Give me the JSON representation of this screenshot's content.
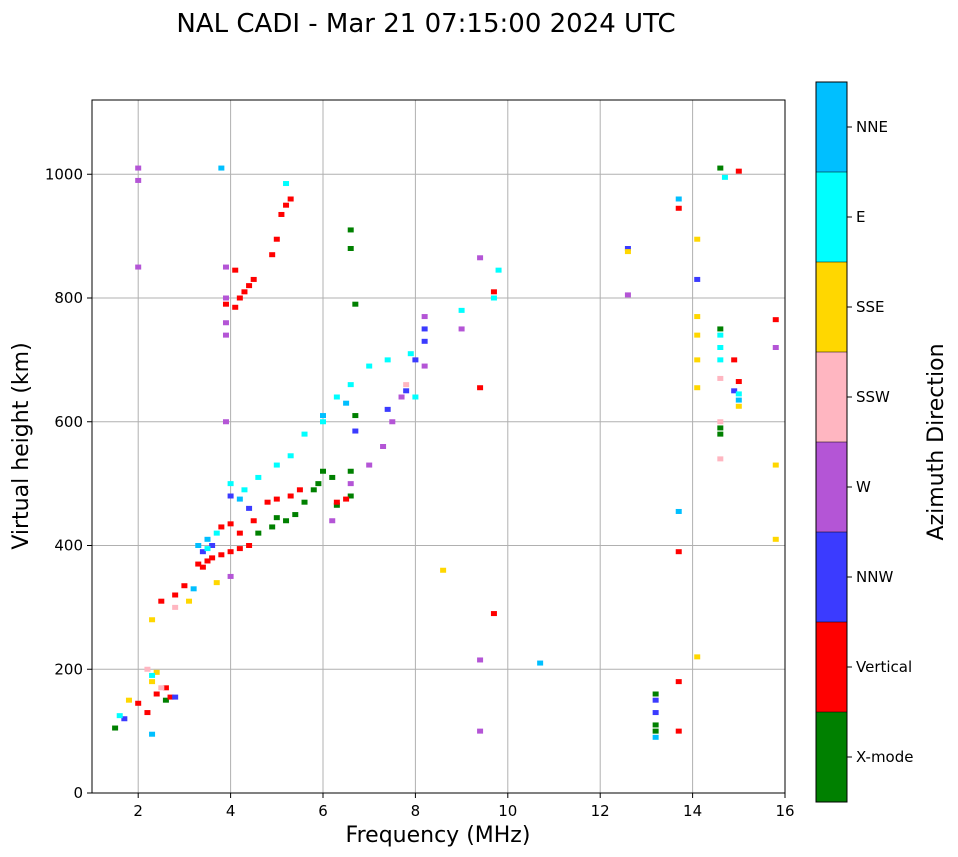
{
  "chart_data": {
    "type": "scatter",
    "title": "NAL CADI - Mar 21 07:15:00 2024 UTC",
    "xlabel": "Frequency (MHz)",
    "ylabel": "Virtual height (km)",
    "xlim": [
      1,
      16
    ],
    "ylim": [
      0,
      1120
    ],
    "xticks": [
      2,
      4,
      6,
      8,
      10,
      12,
      14,
      16
    ],
    "yticks": [
      0,
      200,
      400,
      600,
      800,
      1000
    ],
    "grid": true,
    "colorbar": {
      "label": "Azimuth Direction",
      "categories": [
        {
          "name": "X-mode",
          "color": "#008000"
        },
        {
          "name": "Vertical",
          "color": "#ff0000"
        },
        {
          "name": "NNW",
          "color": "#3b3bff"
        },
        {
          "name": "W",
          "color": "#b455d6"
        },
        {
          "name": "SSW",
          "color": "#ffb6c1"
        },
        {
          "name": "SSE",
          "color": "#ffd700"
        },
        {
          "name": "E",
          "color": "#00ffff"
        },
        {
          "name": "NNE",
          "color": "#00bfff"
        }
      ]
    },
    "series": [
      {
        "name": "X-mode",
        "points": [
          [
            1.5,
            105
          ],
          [
            2.6,
            150
          ],
          [
            4.6,
            420
          ],
          [
            4.9,
            430
          ],
          [
            5.0,
            445
          ],
          [
            5.2,
            440
          ],
          [
            5.4,
            450
          ],
          [
            5.6,
            470
          ],
          [
            5.8,
            490
          ],
          [
            5.9,
            500
          ],
          [
            6.0,
            520
          ],
          [
            6.2,
            510
          ],
          [
            6.3,
            465
          ],
          [
            6.6,
            480
          ],
          [
            6.6,
            520
          ],
          [
            6.7,
            610
          ],
          [
            6.7,
            790
          ],
          [
            6.6,
            880
          ],
          [
            6.6,
            910
          ],
          [
            13.2,
            100
          ],
          [
            13.2,
            110
          ],
          [
            14.6,
            580
          ],
          [
            14.6,
            590
          ],
          [
            14.6,
            750
          ],
          [
            14.6,
            1010
          ],
          [
            13.2,
            160
          ]
        ]
      },
      {
        "name": "Vertical",
        "points": [
          [
            2.0,
            145
          ],
          [
            2.2,
            130
          ],
          [
            2.4,
            160
          ],
          [
            2.6,
            170
          ],
          [
            2.7,
            155
          ],
          [
            2.5,
            310
          ],
          [
            2.8,
            320
          ],
          [
            3.0,
            335
          ],
          [
            3.3,
            370
          ],
          [
            3.4,
            365
          ],
          [
            3.5,
            375
          ],
          [
            3.6,
            380
          ],
          [
            3.8,
            385
          ],
          [
            4.0,
            390
          ],
          [
            4.2,
            395
          ],
          [
            4.4,
            400
          ],
          [
            3.8,
            430
          ],
          [
            4.0,
            435
          ],
          [
            4.2,
            420
          ],
          [
            4.5,
            440
          ],
          [
            4.8,
            470
          ],
          [
            5.0,
            475
          ],
          [
            5.3,
            480
          ],
          [
            5.5,
            490
          ],
          [
            6.3,
            470
          ],
          [
            6.5,
            475
          ],
          [
            3.9,
            790
          ],
          [
            4.1,
            785
          ],
          [
            4.2,
            800
          ],
          [
            4.3,
            810
          ],
          [
            4.4,
            820
          ],
          [
            4.5,
            830
          ],
          [
            4.1,
            845
          ],
          [
            4.9,
            870
          ],
          [
            5.0,
            895
          ],
          [
            5.1,
            935
          ],
          [
            5.2,
            950
          ],
          [
            5.3,
            960
          ],
          [
            9.4,
            655
          ],
          [
            9.7,
            290
          ],
          [
            9.7,
            810
          ],
          [
            13.7,
            100
          ],
          [
            13.7,
            180
          ],
          [
            13.7,
            390
          ],
          [
            13.7,
            945
          ],
          [
            14.9,
            700
          ],
          [
            15.0,
            1005
          ],
          [
            15.0,
            665
          ],
          [
            15.8,
            765
          ]
        ]
      },
      {
        "name": "NNW",
        "points": [
          [
            1.7,
            120
          ],
          [
            2.8,
            155
          ],
          [
            3.4,
            390
          ],
          [
            3.6,
            400
          ],
          [
            4.0,
            480
          ],
          [
            4.4,
            460
          ],
          [
            6.7,
            585
          ],
          [
            7.4,
            620
          ],
          [
            7.8,
            650
          ],
          [
            8.0,
            700
          ],
          [
            8.2,
            730
          ],
          [
            8.2,
            750
          ],
          [
            13.2,
            150
          ],
          [
            13.2,
            130
          ],
          [
            12.6,
            880
          ],
          [
            14.1,
            830
          ],
          [
            14.9,
            650
          ]
        ]
      },
      {
        "name": "W",
        "points": [
          [
            2.0,
            850
          ],
          [
            2.0,
            990
          ],
          [
            2.0,
            1010
          ],
          [
            3.9,
            600
          ],
          [
            3.9,
            740
          ],
          [
            3.9,
            760
          ],
          [
            3.9,
            800
          ],
          [
            3.9,
            850
          ],
          [
            4.0,
            350
          ],
          [
            6.2,
            440
          ],
          [
            6.6,
            500
          ],
          [
            7.0,
            530
          ],
          [
            7.3,
            560
          ],
          [
            7.5,
            600
          ],
          [
            7.7,
            640
          ],
          [
            8.2,
            690
          ],
          [
            8.2,
            770
          ],
          [
            9.0,
            750
          ],
          [
            9.4,
            215
          ],
          [
            9.4,
            100
          ],
          [
            9.4,
            865
          ],
          [
            12.6,
            805
          ],
          [
            15.8,
            720
          ]
        ]
      },
      {
        "name": "SSW",
        "points": [
          [
            2.2,
            200
          ],
          [
            2.5,
            170
          ],
          [
            2.8,
            300
          ],
          [
            7.8,
            660
          ],
          [
            14.6,
            540
          ],
          [
            14.6,
            600
          ],
          [
            14.6,
            670
          ]
        ]
      },
      {
        "name": "SSE",
        "points": [
          [
            1.8,
            150
          ],
          [
            2.3,
            180
          ],
          [
            2.4,
            195
          ],
          [
            2.3,
            280
          ],
          [
            3.1,
            310
          ],
          [
            3.7,
            340
          ],
          [
            8.6,
            360
          ],
          [
            14.1,
            220
          ],
          [
            14.1,
            655
          ],
          [
            14.1,
            700
          ],
          [
            14.1,
            740
          ],
          [
            14.1,
            770
          ],
          [
            14.1,
            895
          ],
          [
            15.0,
            625
          ],
          [
            15.8,
            410
          ],
          [
            15.8,
            530
          ],
          [
            12.6,
            875
          ]
        ]
      },
      {
        "name": "E",
        "points": [
          [
            1.6,
            125
          ],
          [
            2.3,
            190
          ],
          [
            3.5,
            395
          ],
          [
            3.7,
            420
          ],
          [
            4.0,
            500
          ],
          [
            4.3,
            490
          ],
          [
            4.6,
            510
          ],
          [
            5.0,
            530
          ],
          [
            5.3,
            545
          ],
          [
            5.6,
            580
          ],
          [
            6.0,
            600
          ],
          [
            6.3,
            640
          ],
          [
            6.6,
            660
          ],
          [
            7.0,
            690
          ],
          [
            7.4,
            700
          ],
          [
            7.9,
            710
          ],
          [
            8.0,
            640
          ],
          [
            9.0,
            780
          ],
          [
            9.7,
            800
          ],
          [
            9.8,
            845
          ],
          [
            14.6,
            700
          ],
          [
            14.6,
            720
          ],
          [
            14.6,
            740
          ],
          [
            15.0,
            645
          ],
          [
            14.7,
            995
          ],
          [
            5.2,
            985
          ]
        ]
      },
      {
        "name": "NNE",
        "points": [
          [
            2.3,
            95
          ],
          [
            3.2,
            330
          ],
          [
            3.3,
            400
          ],
          [
            3.5,
            410
          ],
          [
            3.8,
            1010
          ],
          [
            4.2,
            475
          ],
          [
            6.0,
            610
          ],
          [
            6.5,
            630
          ],
          [
            10.7,
            210
          ],
          [
            13.2,
            90
          ],
          [
            13.7,
            455
          ],
          [
            13.7,
            960
          ],
          [
            15.0,
            635
          ]
        ]
      }
    ]
  }
}
